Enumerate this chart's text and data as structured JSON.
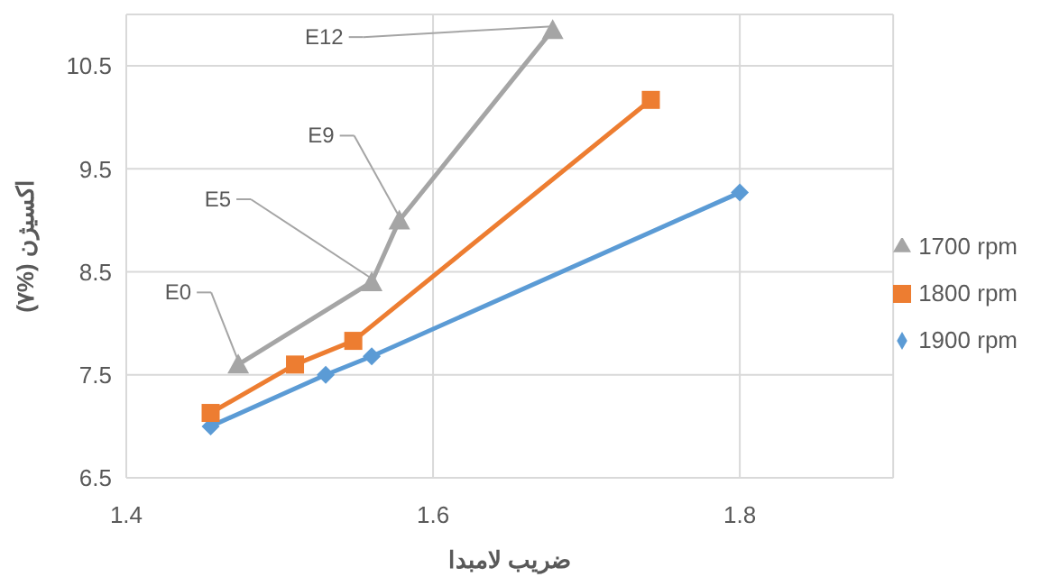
{
  "chart_data": {
    "type": "line",
    "xlabel": "ضریب لامبدا",
    "ylabel": "اکسیژن (%۷)",
    "xlim": [
      1.4,
      1.9
    ],
    "xticks": [
      1.4,
      1.6,
      1.8
    ],
    "ylim": [
      6.5,
      11
    ],
    "yticks": [
      6.5,
      7.5,
      8.5,
      9.5,
      10.5
    ],
    "grid": true,
    "legend": "right",
    "series": [
      {
        "name": "1900 rpm",
        "color": "#5b9bd5",
        "marker": "diamond",
        "x": [
          1.455,
          1.53,
          1.56,
          1.8
        ],
        "values": [
          7.0,
          7.5,
          7.68,
          9.27
        ]
      },
      {
        "name": "1800 rpm",
        "color": "#ed7d31",
        "marker": "square",
        "x": [
          1.455,
          1.51,
          1.548,
          1.742
        ],
        "values": [
          7.13,
          7.6,
          7.83,
          10.17
        ]
      },
      {
        "name": "1700 rpm",
        "color": "#a5a5a5",
        "marker": "triangle",
        "x": [
          1.473,
          1.56,
          1.578,
          1.678
        ],
        "values": [
          7.6,
          8.4,
          9.0,
          10.85
        ]
      }
    ],
    "annotations": [
      {
        "text": "E0",
        "x": 1.473,
        "y": 7.6
      },
      {
        "text": "E5",
        "x": 1.56,
        "y": 8.4
      },
      {
        "text": "E9",
        "x": 1.578,
        "y": 9.0
      },
      {
        "text": "E12",
        "x": 1.678,
        "y": 10.85
      }
    ]
  }
}
